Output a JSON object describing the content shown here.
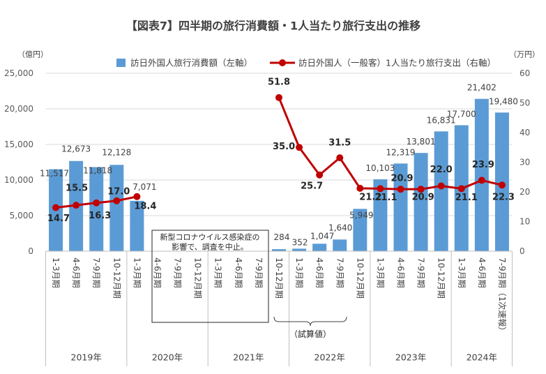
{
  "colors": {
    "title": "#C00000",
    "bar": "#5B9BD5",
    "line": "#C00000",
    "gridline": "#D9D9D9",
    "axis": "#BFBFBF",
    "text": "#404040"
  },
  "chart_data": {
    "type": "bar",
    "title": "【図表7】四半期の旅行消費額・1人当たり旅行支出の推移",
    "grid": true,
    "legend": "top",
    "y_left": {
      "unit": "（億円）",
      "min": 0,
      "max": 25000,
      "ticks": [
        0,
        5000,
        10000,
        15000,
        20000,
        25000
      ],
      "tick_labels": [
        "0",
        "5,000",
        "10,000",
        "15,000",
        "20,000",
        "25,000"
      ]
    },
    "y_right": {
      "unit": "（万円）",
      "min": 0,
      "max": 60,
      "ticks": [
        0,
        10,
        20,
        30,
        40,
        50,
        60
      ],
      "tick_labels": [
        "0",
        "10",
        "20",
        "30",
        "40",
        "50",
        "60"
      ]
    },
    "year_groups": [
      {
        "label": "2019年",
        "quarters": [
          "1-3月期",
          "4-6月期",
          "7-9月期",
          "10-12月期"
        ]
      },
      {
        "label": "2020年",
        "quarters": [
          "1-3月期",
          "4-6月期",
          "7-9月期",
          "10-12月期"
        ]
      },
      {
        "label": "2021年",
        "quarters": [
          "1-3月期",
          "4-6月期",
          "7-9月期",
          "10-12月期"
        ]
      },
      {
        "label": "2022年",
        "quarters": [
          "1-3月期",
          "4-6月期",
          "7-9月期",
          "10-12月期"
        ]
      },
      {
        "label": "2023年",
        "quarters": [
          "1-3月期",
          "4-6月期",
          "7-9月期",
          "10-12月期"
        ]
      },
      {
        "label": "2024年",
        "quarters": [
          "1-3月期",
          "4-6月期",
          "7-9月期（1次速報）"
        ]
      }
    ],
    "series": [
      {
        "name": "訪日外国人旅行消費額（左軸）",
        "type": "bar",
        "values": [
          11517,
          12673,
          11818,
          12128,
          7071,
          null,
          null,
          null,
          null,
          null,
          null,
          284,
          352,
          1047,
          1640,
          5949,
          10103,
          12319,
          13801,
          16831,
          17700,
          21402,
          19480
        ],
        "labels": [
          "11,517",
          "12,673",
          "11,818",
          "12,128",
          "7,071",
          null,
          null,
          null,
          null,
          null,
          null,
          "284",
          "352",
          "1,047",
          "1,640",
          "5,949",
          "10,103",
          "12,319",
          "13,801",
          "16,831",
          "17,700",
          "21,402",
          "19,480"
        ]
      },
      {
        "name": "訪日外国人（一般客）1人当たり旅行支出（右軸）",
        "type": "line",
        "values": [
          14.7,
          15.5,
          16.3,
          17.0,
          18.4,
          null,
          null,
          null,
          null,
          null,
          null,
          51.8,
          35.0,
          25.7,
          31.5,
          21.2,
          21.1,
          20.9,
          20.9,
          22.0,
          21.1,
          23.9,
          22.3
        ],
        "labels": [
          "14.7",
          "15.5",
          "16.3",
          "17.0",
          "18.4",
          null,
          null,
          null,
          null,
          null,
          null,
          "51.8",
          "35.0",
          "25.7",
          "31.5",
          "21.2",
          "21.1",
          "20.9",
          "20.9",
          "22.0",
          "21.1",
          "23.9",
          "22.3"
        ]
      }
    ],
    "annotations": {
      "survey_suspended": [
        "新型コロナウイルス感染症の",
        "影響で、調査を中止。"
      ],
      "estimate": "（試算値）"
    }
  }
}
